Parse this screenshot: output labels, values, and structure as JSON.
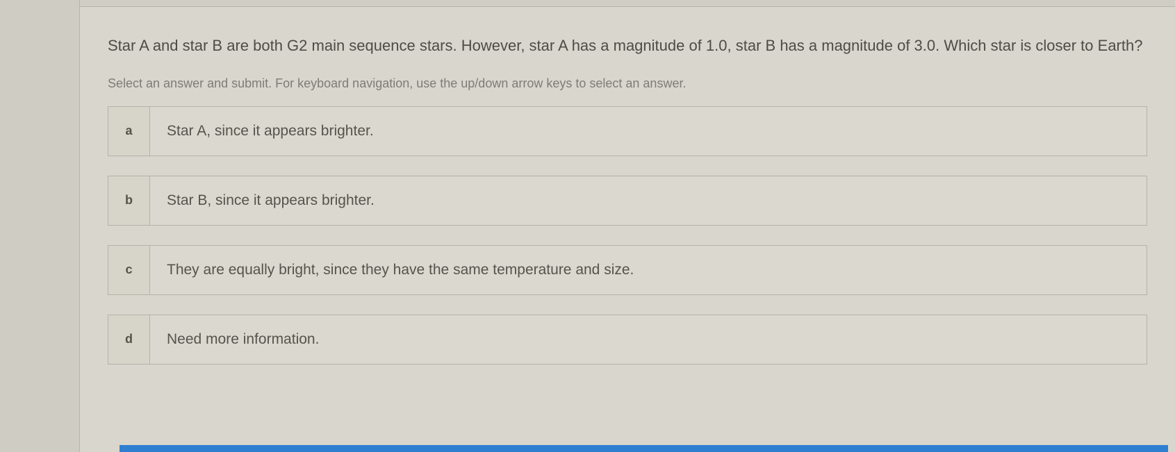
{
  "colors": {
    "page_bg": "#d8d6cd",
    "left_strip_bg": "#cfcdc3",
    "divider": "#b8b6ac",
    "option_border": "#b5b3a9",
    "option_bg": "#dbd9cf",
    "option_key_bg": "#d7d5ca",
    "question_text": "#4e4c45",
    "instruction_text": "#7e7c74",
    "option_text": "#55534b",
    "bottom_bar": "#2f7fd1"
  },
  "typography": {
    "question_fontsize": 22,
    "instruction_fontsize": 18,
    "option_key_fontsize": 18,
    "option_label_fontsize": 21
  },
  "question": {
    "text": "Star A and star B are both G2 main sequence stars. However, star A has a magnitude of 1.0, star B has a magnitude of 3.0. Which star is closer to Earth?"
  },
  "instruction": "Select an answer and submit. For keyboard navigation, use the up/down arrow keys to select an answer.",
  "options": [
    {
      "key": "a",
      "label": "Star A, since it appears brighter."
    },
    {
      "key": "b",
      "label": "Star B, since it appears brighter."
    },
    {
      "key": "c",
      "label": "They are equally bright, since they have the same temperature and size."
    },
    {
      "key": "d",
      "label": "Need more information."
    }
  ]
}
